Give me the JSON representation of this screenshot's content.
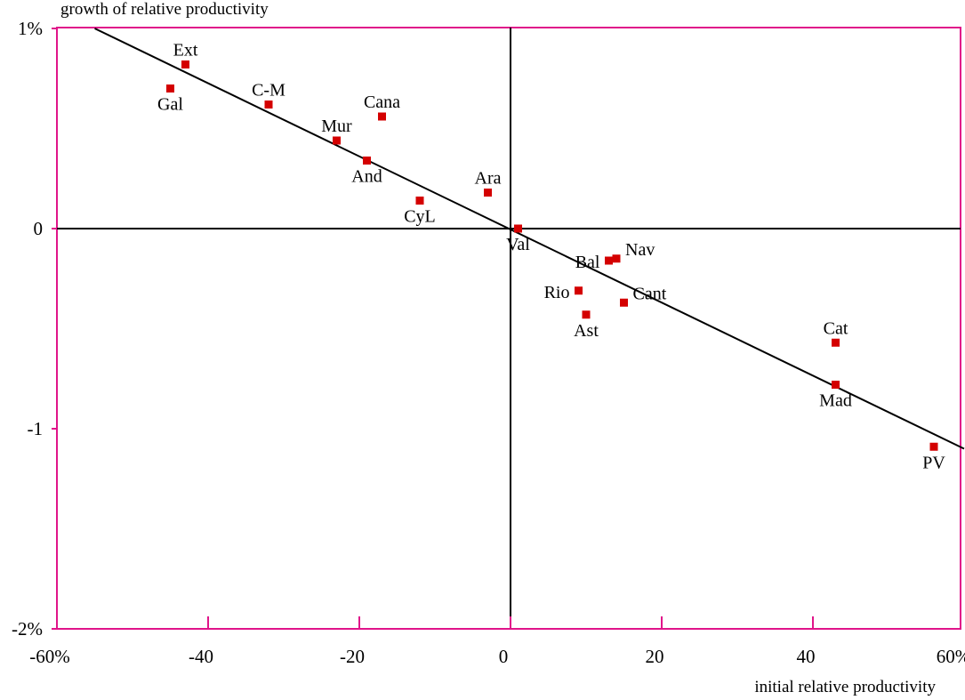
{
  "chart_data": {
    "type": "scatter",
    "ylabel": "growth of relative productivity",
    "xlabel": "initial relative productivity",
    "xlim": [
      -60,
      60
    ],
    "ylim": [
      -2,
      1
    ],
    "x_ticks": [
      {
        "value": -60,
        "label": "-60%"
      },
      {
        "value": -40,
        "label": "-40"
      },
      {
        "value": -20,
        "label": "-20"
      },
      {
        "value": 0,
        "label": "0"
      },
      {
        "value": 20,
        "label": "20"
      },
      {
        "value": 40,
        "label": "40"
      },
      {
        "value": 60,
        "label": "60%"
      }
    ],
    "y_ticks": [
      {
        "value": 1,
        "label": "1%"
      },
      {
        "value": 0,
        "label": "0"
      },
      {
        "value": -1,
        "label": "-1"
      },
      {
        "value": -2,
        "label": "-2%"
      }
    ],
    "reference_lines": {
      "x": 0,
      "y": 0
    },
    "regression_line": {
      "x1": -55,
      "y1": 1.0,
      "x2": 60,
      "y2": -1.1
    },
    "points": [
      {
        "label": "Ext",
        "x": -43,
        "y": 0.82,
        "label_pos": "above"
      },
      {
        "label": "Gal",
        "x": -45,
        "y": 0.7,
        "label_pos": "below"
      },
      {
        "label": "C-M",
        "x": -32,
        "y": 0.62,
        "label_pos": "above"
      },
      {
        "label": "Cana",
        "x": -17,
        "y": 0.56,
        "label_pos": "above"
      },
      {
        "label": "Mur",
        "x": -23,
        "y": 0.44,
        "label_pos": "above"
      },
      {
        "label": "And",
        "x": -19,
        "y": 0.34,
        "label_pos": "below"
      },
      {
        "label": "CyL",
        "x": -12,
        "y": 0.14,
        "label_pos": "below"
      },
      {
        "label": "Ara",
        "x": -3,
        "y": 0.18,
        "label_pos": "above"
      },
      {
        "label": "Val",
        "x": 1,
        "y": 0.0,
        "label_pos": "below"
      },
      {
        "label": "Nav",
        "x": 14,
        "y": -0.15,
        "label_pos": "right"
      },
      {
        "label": "Bal",
        "x": 13,
        "y": -0.16,
        "label_pos": "left"
      },
      {
        "label": "Rio",
        "x": 9,
        "y": -0.31,
        "label_pos": "left"
      },
      {
        "label": "Cant",
        "x": 15,
        "y": -0.37,
        "label_pos": "right"
      },
      {
        "label": "Ast",
        "x": 10,
        "y": -0.43,
        "label_pos": "below"
      },
      {
        "label": "Cat",
        "x": 43,
        "y": -0.57,
        "label_pos": "above"
      },
      {
        "label": "Mad",
        "x": 43,
        "y": -0.78,
        "label_pos": "below"
      },
      {
        "label": "PV",
        "x": 56,
        "y": -1.09,
        "label_pos": "below"
      }
    ],
    "colors": {
      "frame": "#e0158a",
      "point": "#d40000",
      "line": "#000000"
    }
  }
}
